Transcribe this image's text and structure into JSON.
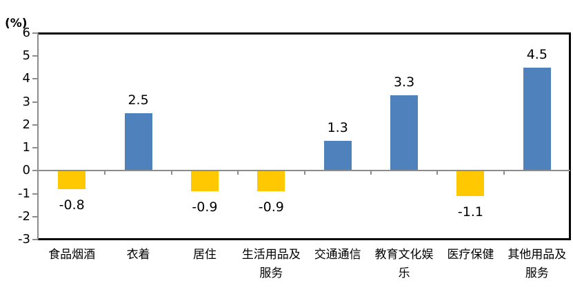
{
  "chart_data": {
    "type": "bar",
    "title": "",
    "unit_label": "(%)",
    "xlabel": "",
    "ylabel": "(%)",
    "categories": [
      "食品烟酒",
      "衣着",
      "居住",
      "生活用品及服务",
      "交通通信",
      "教育文化娱乐",
      "医疗保健",
      "其他用品及服务"
    ],
    "category_label_lines": [
      [
        "食品烟酒"
      ],
      [
        "衣着"
      ],
      [
        "居住"
      ],
      [
        "生活用品及",
        "服务"
      ],
      [
        "交通通信"
      ],
      [
        "教育文化娱",
        "乐"
      ],
      [
        "医疗保健"
      ],
      [
        "其他用品及",
        "服务"
      ]
    ],
    "values": [
      -0.8,
      2.5,
      -0.9,
      -0.9,
      1.3,
      3.3,
      -1.1,
      4.5
    ],
    "data_labels": [
      "-0.8",
      "2.5",
      "-0.9",
      "-0.9",
      "1.3",
      "3.3",
      "-1.1",
      "4.5"
    ],
    "ylim": [
      -3,
      6
    ],
    "yticks": [
      6,
      5,
      4,
      3,
      2,
      1,
      0,
      -1,
      -2,
      -3
    ],
    "ytick_interval": 1,
    "grid": "off",
    "legend": "none",
    "colors": {
      "positive_bar": "#4F81BD",
      "negative_bar": "#FFC800",
      "axis_line": "#8C8C8C",
      "plot_border": "#000000",
      "text": "#000000"
    }
  }
}
